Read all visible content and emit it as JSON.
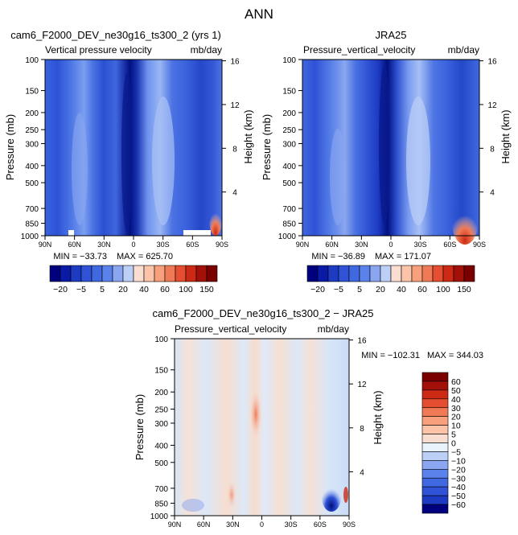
{
  "figure": {
    "title": "ANN"
  },
  "chart_data": [
    {
      "type": "heatmap",
      "title": "cam6_F2000_DEV_ne30g16_ts300_2 (yrs 1)",
      "subtitle_left": "Vertical pressure velocity",
      "subtitle_right": "mb/day",
      "ylabel": "Pressure (mb)",
      "y2label": "Height (km)",
      "x_ticks": [
        "90N",
        "60N",
        "30N",
        "0",
        "30S",
        "60S",
        "90S"
      ],
      "y_ticks": [
        "100",
        "150",
        "200",
        "250",
        "300",
        "400",
        "500",
        "700",
        "850",
        "1000"
      ],
      "y_tick_values": [
        100,
        150,
        200,
        250,
        300,
        400,
        500,
        700,
        850,
        1000
      ],
      "y2_ticks": [
        "16",
        "12",
        "8",
        "4"
      ],
      "y2_tick_values": [
        16,
        12,
        8,
        4
      ],
      "stats": {
        "min_label": "MIN = −33.73",
        "max_label": "MAX = 625.70"
      },
      "colorbar_labels": [
        "−20",
        "−5",
        "5",
        "20",
        "40",
        "60",
        "100",
        "150"
      ]
    },
    {
      "type": "heatmap",
      "title": "JRA25",
      "subtitle_left": "Pressure_vertical_velocity",
      "subtitle_right": "mb/day",
      "ylabel": "Pressure (mb)",
      "y2label": "Height (km)",
      "x_ticks": [
        "90N",
        "60N",
        "30N",
        "0",
        "30S",
        "60S",
        "90S"
      ],
      "y_ticks": [
        "100",
        "150",
        "200",
        "250",
        "300",
        "400",
        "500",
        "700",
        "850",
        "1000"
      ],
      "y_tick_values": [
        100,
        150,
        200,
        250,
        300,
        400,
        500,
        700,
        850,
        1000
      ],
      "y2_ticks": [
        "16",
        "12",
        "8",
        "4"
      ],
      "y2_tick_values": [
        16,
        12,
        8,
        4
      ],
      "stats": {
        "min_label": "MIN = −36.89",
        "max_label": "MAX = 171.07"
      },
      "colorbar_labels": [
        "−20",
        "−5",
        "5",
        "20",
        "40",
        "60",
        "100",
        "150"
      ]
    },
    {
      "type": "heatmap",
      "title": "cam6_F2000_DEV_ne30g16_ts300_2 − JRA25",
      "subtitle_left": "Pressure_vertical_velocity",
      "subtitle_right": "mb/day",
      "ylabel": "Pressure (mb)",
      "y2label": "Height (km)",
      "x_ticks": [
        "90N",
        "60N",
        "30N",
        "0",
        "30S",
        "60S",
        "90S"
      ],
      "y_ticks": [
        "100",
        "150",
        "200",
        "250",
        "300",
        "400",
        "500",
        "700",
        "850",
        "1000"
      ],
      "y_tick_values": [
        100,
        150,
        200,
        250,
        300,
        400,
        500,
        700,
        850,
        1000
      ],
      "y2_ticks": [
        "16",
        "12",
        "8",
        "4"
      ],
      "y2_tick_values": [
        16,
        12,
        8,
        4
      ],
      "stats": {
        "min_label": "MIN = −102.31",
        "max_label": "MAX = 344.03"
      },
      "colorbar_labels": [
        "60",
        "50",
        "40",
        "30",
        "20",
        "10",
        "5",
        "0",
        "−5",
        "−10",
        "−20",
        "−30",
        "−40",
        "−50",
        "−60"
      ]
    }
  ],
  "colorbar_colors": {
    "full": [
      "#00007f",
      "#0a1aa8",
      "#1d3ac2",
      "#2f52d6",
      "#4068e0",
      "#5a82ea",
      "#8aa6f0",
      "#bcd0f7",
      "#f9ddd0",
      "#fbc4a8",
      "#f8a07c",
      "#f07a55",
      "#e54e30",
      "#cc2a14",
      "#a3100a",
      "#7a0000"
    ],
    "diff": [
      "#7a0000",
      "#a3100a",
      "#cc2a14",
      "#e54e30",
      "#f07a55",
      "#f8a07c",
      "#fbc4a8",
      "#f9ddd0",
      "#e8f2fb",
      "#bcd0f7",
      "#8aa6f0",
      "#5a82ea",
      "#4068e0",
      "#2f52d6",
      "#1d3ac2",
      "#00007f"
    ]
  }
}
